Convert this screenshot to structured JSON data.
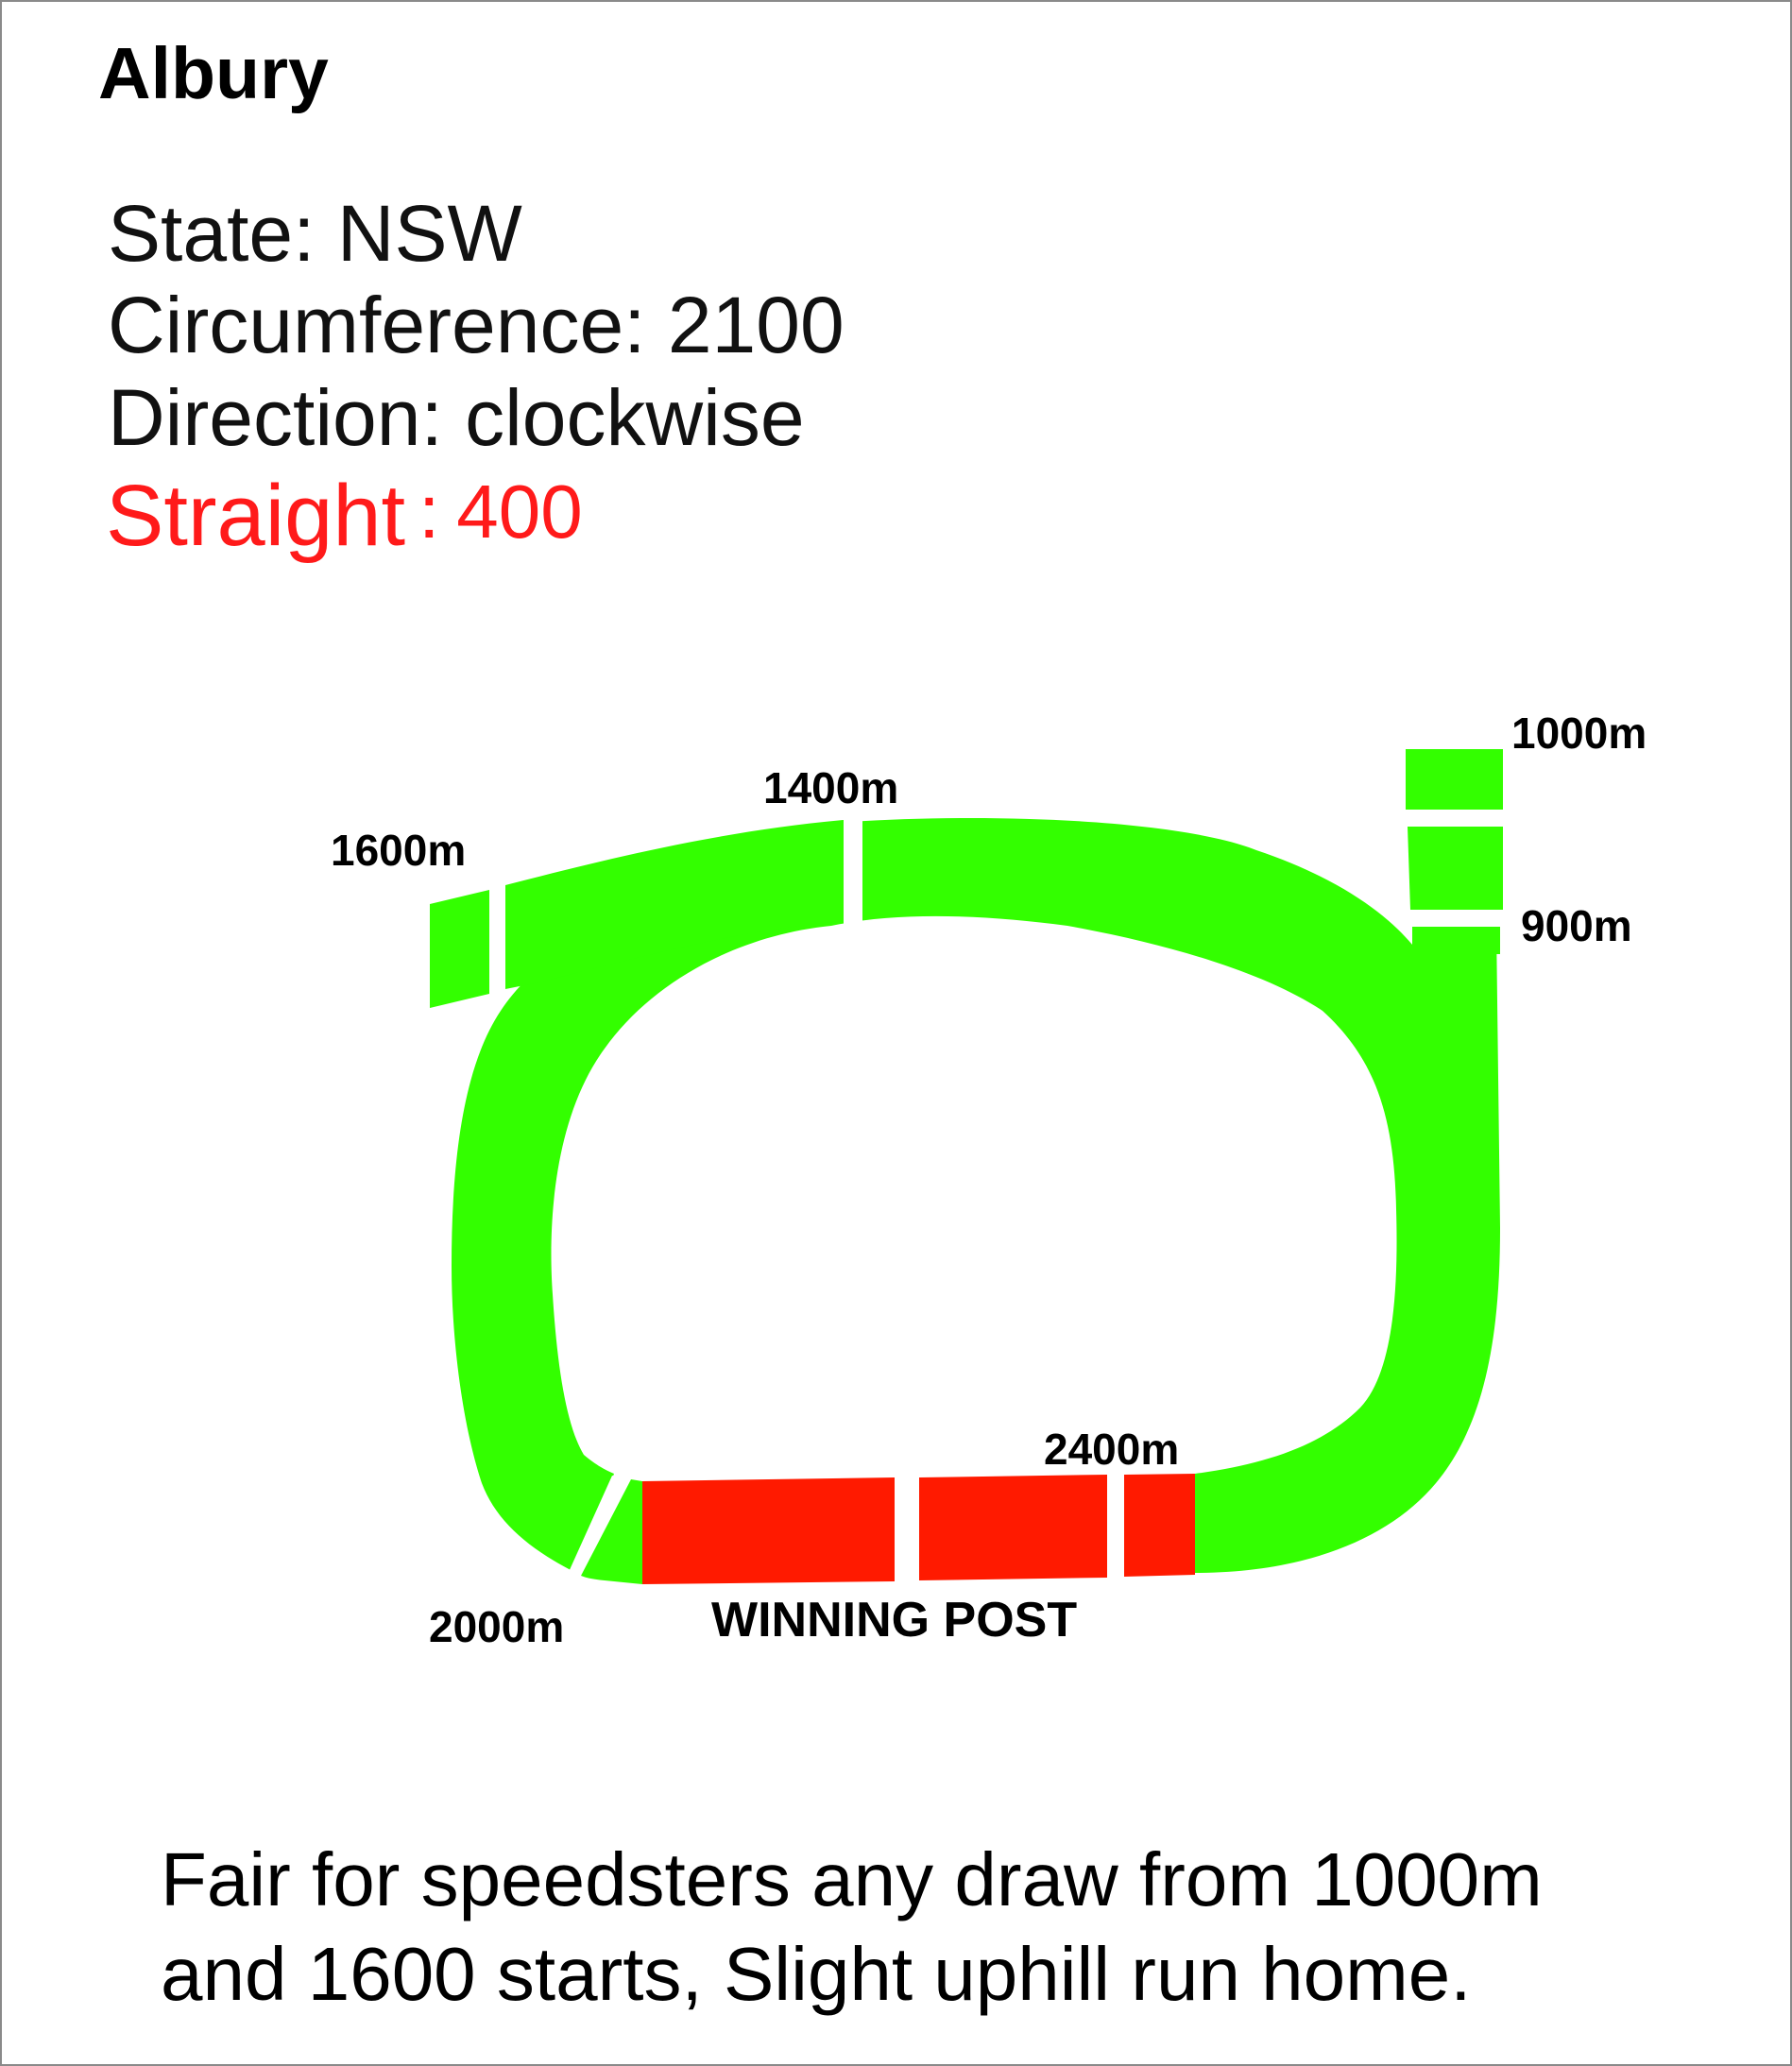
{
  "title": "Albury",
  "stats": {
    "state": "State: NSW",
    "circumference": "Circumference: 2100",
    "direction": "Direction: clockwise",
    "straight_label": "Straight",
    "straight_sep": ":",
    "straight_value": "400"
  },
  "colors": {
    "track": "#33ff00",
    "straight": "#ff1a00",
    "straight_text": "#ff1a1a"
  },
  "markers": {
    "m1000": "1000m",
    "m900": "900m",
    "m1400": "1400m",
    "m1600": "1600m",
    "m2000": "2000m",
    "m2400": "2400m",
    "winning_post": "WINNING POST"
  },
  "note": {
    "line1": "Fair for speedsters any draw from 1000m",
    "line2": "and 1600 starts, Slight uphill run home."
  }
}
